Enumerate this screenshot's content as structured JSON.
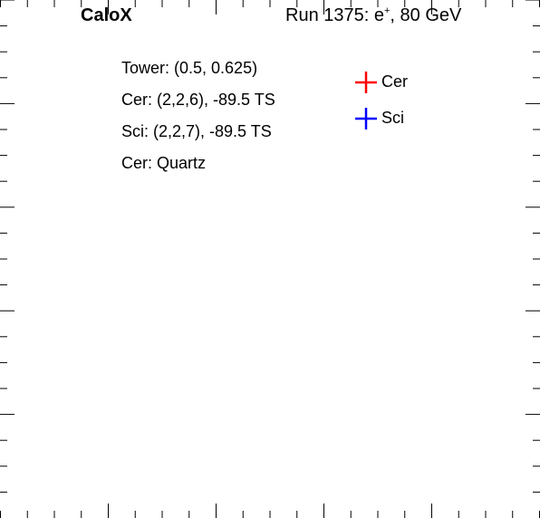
{
  "header": {
    "brand": "CaloX",
    "run_prefix": "Run 1375: e",
    "run_sup": "+",
    "run_suffix": ", 80 GeV"
  },
  "info": [
    "Tower: (0.5, 0.625)",
    "Cer: (2,2,6), -89.5 TS",
    "Sci: (2,2,7), -89.5 TS",
    "Cer: Quartz"
  ],
  "chart_data": {
    "type": "scatter",
    "title": "",
    "xlabel": "",
    "ylabel": "",
    "grid": false,
    "legend_position": "top-right",
    "series": [
      {
        "name": "Cer",
        "color": "#ff0000",
        "points": []
      },
      {
        "name": "Sci",
        "color": "#0000ff",
        "points": []
      }
    ]
  }
}
